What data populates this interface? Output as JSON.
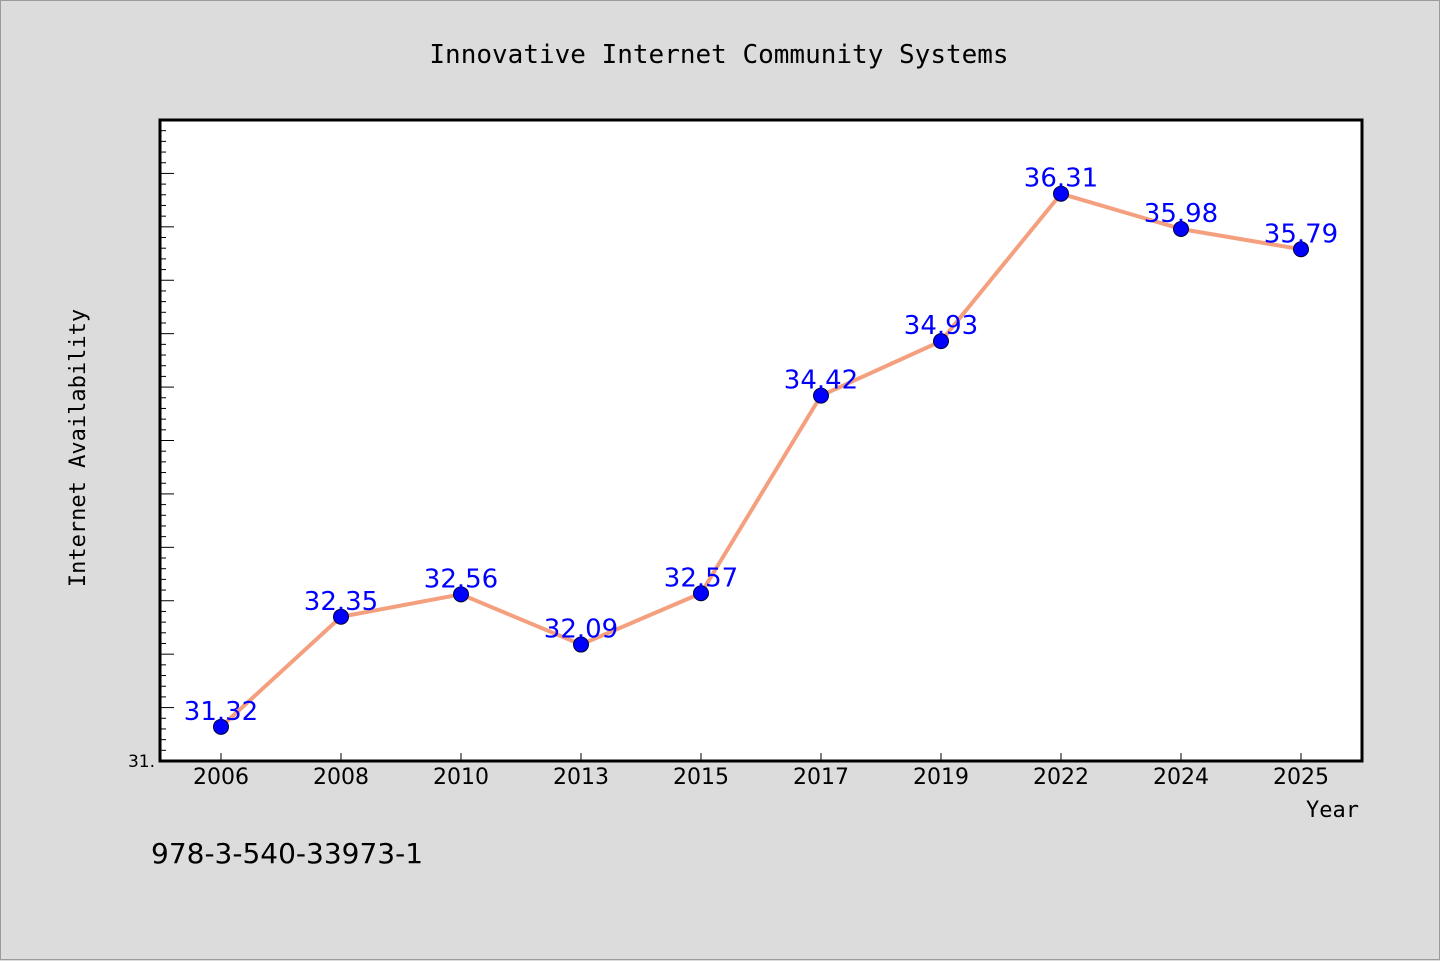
{
  "chart_data": {
    "type": "line",
    "title": "Innovative Internet Community Systems",
    "xlabel": "Year",
    "ylabel": "Internet Availability",
    "categories": [
      "2006",
      "2008",
      "2010",
      "2013",
      "2015",
      "2017",
      "2019",
      "2022",
      "2024",
      "2025"
    ],
    "series": [
      {
        "values": [
          31.32,
          32.35,
          32.56,
          32.09,
          32.57,
          34.42,
          34.93,
          36.31,
          35.98,
          35.79
        ],
        "labels": [
          "31.32",
          "32.35",
          "32.56",
          "32.09",
          "32.57",
          "34.42",
          "34.93",
          "36.31",
          "35.98",
          "35.79"
        ],
        "line_color": "#f4a07f",
        "marker_color": "#0000ff",
        "label_color": "#0000ff"
      }
    ],
    "ylim": [
      31.0,
      37.0
    ],
    "y_tick_label": "31.",
    "grid": false,
    "legend": "none"
  },
  "footer_text": "978-3-540-33973-1",
  "colors": {
    "background": "#dcdcdc",
    "plot_background": "#ffffff",
    "axis": "#000000"
  }
}
